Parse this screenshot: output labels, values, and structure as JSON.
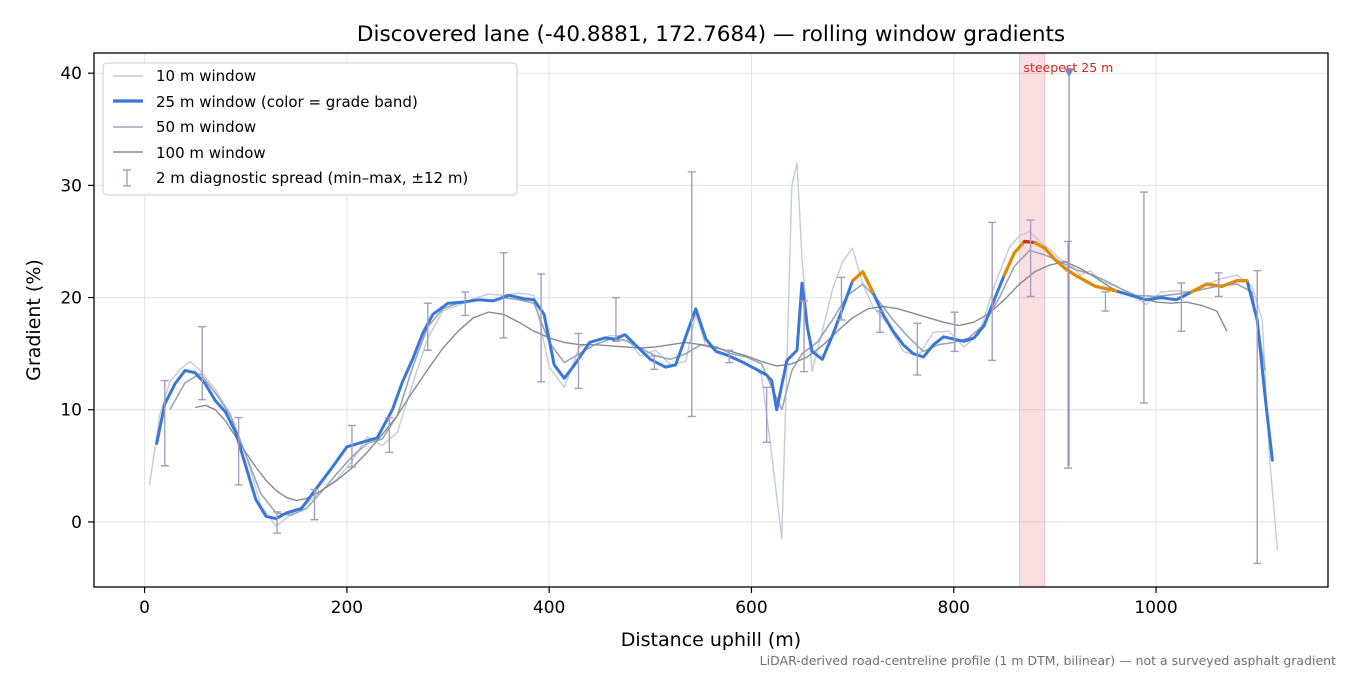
{
  "chart_data": {
    "type": "line",
    "title": "Discovered lane (-40.8881, 172.7684) — rolling window gradients",
    "xlabel": "Distance uphill (m)",
    "ylabel": "Gradient (%)",
    "xlim": [
      -50,
      1170
    ],
    "ylim": [
      -5.8,
      41.8
    ],
    "xticks": [
      0,
      200,
      400,
      600,
      800,
      1000
    ],
    "yticks": [
      0,
      10,
      20,
      30,
      40
    ],
    "grid": true,
    "legend_position": "top-left",
    "footnote": "LiDAR-derived road-centreline profile (1 m DTM, bilinear) — not a surveyed asphalt gradient",
    "highlight": {
      "x_range": [
        865,
        890
      ],
      "label": "steepest 25 m",
      "marker": [
        914,
        40
      ],
      "color": "#d9434f"
    },
    "colors": {
      "w10": "#c3ccd6",
      "w25": "#3a78d6",
      "w25_steep": "#e08c00",
      "w25_peak": "#d0281a",
      "w50": "#9aa6b6",
      "w100": "#858b95",
      "errorbar": "#a59cc2"
    },
    "series": [
      {
        "name": "10 m window",
        "key": "w10",
        "x": [
          5,
          15,
          25,
          35,
          45,
          55,
          70,
          85,
          100,
          115,
          130,
          145,
          160,
          175,
          190,
          205,
          220,
          235,
          250,
          265,
          280,
          295,
          310,
          325,
          340,
          355,
          370,
          385,
          400,
          415,
          430,
          445,
          460,
          475,
          490,
          505,
          520,
          535,
          545,
          555,
          570,
          585,
          600,
          610,
          620,
          630,
          640,
          645,
          650,
          660,
          670,
          680,
          690,
          700,
          710,
          720,
          735,
          750,
          765,
          780,
          795,
          810,
          825,
          840,
          855,
          865,
          875,
          885,
          895,
          905,
          915,
          925,
          935,
          945,
          960,
          975,
          990,
          1005,
          1020,
          1035,
          1050,
          1065,
          1080,
          1095,
          1105,
          1112,
          1120
        ],
        "y": [
          3.3,
          9.5,
          12.5,
          13.6,
          14.3,
          13.5,
          11.8,
          9.6,
          6.0,
          1.5,
          -0.4,
          0.7,
          1.6,
          2.8,
          3.8,
          5.4,
          7.6,
          6.8,
          8.0,
          12.3,
          16.4,
          18.8,
          19.3,
          19.9,
          20.3,
          20.2,
          20.4,
          20.2,
          13.8,
          12.0,
          15.6,
          16.1,
          16.6,
          16.6,
          14.8,
          15.3,
          14.0,
          14.3,
          18.5,
          15.7,
          15.1,
          14.6,
          13.9,
          13.1,
          6.0,
          -1.5,
          30.0,
          32.0,
          23.5,
          13.4,
          17.0,
          20.7,
          23.2,
          24.4,
          21.2,
          19.2,
          17.6,
          15.2,
          14.8,
          16.9,
          17.0,
          15.6,
          16.7,
          21.0,
          24.5,
          25.5,
          25.9,
          25.0,
          24.3,
          23.4,
          23.0,
          22.0,
          22.4,
          21.5,
          21.0,
          20.3,
          19.4,
          20.5,
          20.6,
          20.5,
          21.2,
          21.7,
          22.0,
          21.0,
          18.0,
          6.0,
          -2.5
        ]
      },
      {
        "name": "25 m window (color = grade band)",
        "key": "w25",
        "x": [
          12,
          20,
          30,
          40,
          50,
          60,
          70,
          80,
          90,
          100,
          110,
          120,
          130,
          140,
          155,
          170,
          185,
          200,
          215,
          230,
          245,
          255,
          265,
          275,
          285,
          300,
          315,
          330,
          345,
          360,
          375,
          385,
          395,
          405,
          415,
          425,
          440,
          455,
          465,
          475,
          485,
          500,
          515,
          525,
          535,
          545,
          555,
          565,
          575,
          590,
          605,
          615,
          620,
          625,
          635,
          645,
          650,
          655,
          660,
          670,
          680,
          690,
          700,
          710,
          720,
          730,
          740,
          750,
          760,
          770,
          780,
          790,
          800,
          810,
          820,
          830,
          840,
          850,
          860,
          870,
          880,
          890,
          900,
          910,
          920,
          930,
          940,
          950,
          960,
          975,
          990,
          1005,
          1020,
          1035,
          1050,
          1065,
          1080,
          1090,
          1100,
          1108,
          1115
        ],
        "y": [
          7.0,
          10.5,
          12.3,
          13.5,
          13.3,
          12.3,
          10.8,
          9.8,
          8.0,
          5.0,
          2.0,
          0.5,
          0.3,
          0.8,
          1.2,
          3.0,
          4.8,
          6.7,
          7.1,
          7.5,
          10.0,
          12.5,
          14.5,
          16.8,
          18.5,
          19.5,
          19.6,
          19.8,
          19.7,
          20.2,
          19.9,
          19.8,
          18.5,
          14.0,
          12.8,
          14.0,
          16.0,
          16.4,
          16.3,
          16.7,
          15.8,
          14.5,
          13.8,
          14.0,
          16.5,
          19.0,
          16.3,
          15.2,
          14.9,
          14.3,
          13.6,
          13.1,
          12.6,
          10.0,
          14.4,
          15.3,
          21.3,
          17.5,
          15.2,
          14.5,
          16.6,
          19.0,
          21.5,
          22.3,
          20.5,
          18.5,
          17.0,
          15.8,
          15.0,
          14.7,
          15.8,
          16.5,
          16.3,
          16.1,
          16.4,
          17.5,
          19.8,
          22.0,
          24.0,
          25.0,
          24.9,
          24.4,
          23.4,
          22.6,
          22.0,
          21.5,
          21.0,
          20.8,
          20.6,
          20.2,
          19.8,
          20.0,
          19.8,
          20.5,
          21.2,
          21.0,
          21.5,
          21.5,
          18.0,
          11.0,
          5.5
        ]
      },
      {
        "name": "50 m window",
        "key": "w50",
        "x": [
          25,
          40,
          55,
          70,
          85,
          100,
          115,
          130,
          145,
          160,
          175,
          190,
          205,
          220,
          235,
          250,
          265,
          280,
          295,
          310,
          325,
          340,
          355,
          370,
          385,
          400,
          415,
          430,
          445,
          460,
          475,
          490,
          505,
          520,
          535,
          550,
          565,
          580,
          595,
          610,
          620,
          630,
          640,
          650,
          665,
          680,
          695,
          710,
          725,
          740,
          755,
          770,
          785,
          800,
          815,
          830,
          845,
          860,
          875,
          890,
          905,
          920,
          935,
          950,
          965,
          980,
          1000,
          1020,
          1040,
          1060,
          1080,
          1095,
          1108
        ],
        "y": [
          10.0,
          12.4,
          13.2,
          11.5,
          9.5,
          6.0,
          2.5,
          0.8,
          0.6,
          1.2,
          2.7,
          4.3,
          5.8,
          7.0,
          7.4,
          9.5,
          13.8,
          17.4,
          19.0,
          19.5,
          19.8,
          19.7,
          20.0,
          19.8,
          19.5,
          16.0,
          14.2,
          15.0,
          15.8,
          16.3,
          16.2,
          15.5,
          14.8,
          14.5,
          15.0,
          15.8,
          15.6,
          15.0,
          14.7,
          14.1,
          12.0,
          10.0,
          13.5,
          15.0,
          16.0,
          18.0,
          20.2,
          21.2,
          19.8,
          18.0,
          16.5,
          15.2,
          15.8,
          16.0,
          16.4,
          17.6,
          20.0,
          22.8,
          24.2,
          23.8,
          23.2,
          22.5,
          22.1,
          21.5,
          20.8,
          20.2,
          20.1,
          20.3,
          20.6,
          21.0,
          21.2,
          20.5,
          13.5
        ]
      },
      {
        "name": "100 m window",
        "key": "w100",
        "x": [
          50,
          60,
          70,
          80,
          90,
          100,
          110,
          120,
          130,
          140,
          150,
          160,
          175,
          190,
          205,
          220,
          235,
          250,
          265,
          280,
          295,
          310,
          325,
          340,
          355,
          370,
          385,
          400,
          415,
          430,
          445,
          460,
          475,
          490,
          505,
          520,
          535,
          550,
          565,
          580,
          595,
          610,
          625,
          640,
          655,
          670,
          685,
          700,
          715,
          730,
          745,
          760,
          775,
          790,
          805,
          820,
          835,
          850,
          865,
          880,
          895,
          910,
          925,
          940,
          955,
          970,
          985,
          1000,
          1015,
          1030,
          1045,
          1060,
          1070
        ],
        "y": [
          10.2,
          10.4,
          10.0,
          9.0,
          7.6,
          6.2,
          4.9,
          3.7,
          2.8,
          2.2,
          1.9,
          2.1,
          2.8,
          3.7,
          4.8,
          6.2,
          7.8,
          9.5,
          11.6,
          13.6,
          15.5,
          17.0,
          18.2,
          18.7,
          18.5,
          17.8,
          17.0,
          16.4,
          16.0,
          15.8,
          15.8,
          15.7,
          15.6,
          15.5,
          15.6,
          15.8,
          16.0,
          15.8,
          15.5,
          15.2,
          14.8,
          14.3,
          13.9,
          14.1,
          14.7,
          15.7,
          17.0,
          18.2,
          19.0,
          19.2,
          19.0,
          18.6,
          18.2,
          17.8,
          17.5,
          17.8,
          18.6,
          19.8,
          21.2,
          22.3,
          22.9,
          23.2,
          22.6,
          21.8,
          20.9,
          20.3,
          20.0,
          19.6,
          19.5,
          19.6,
          19.3,
          18.8,
          17.0
        ]
      }
    ],
    "errorbars": [
      {
        "x": 20,
        "min": 5.0,
        "max": 12.6
      },
      {
        "x": 57,
        "min": 10.9,
        "max": 17.4
      },
      {
        "x": 93,
        "min": 3.3,
        "max": 9.3
      },
      {
        "x": 131,
        "min": -1.0,
        "max": 0.9
      },
      {
        "x": 168,
        "min": 0.2,
        "max": 2.9
      },
      {
        "x": 205,
        "min": 4.9,
        "max": 8.6
      },
      {
        "x": 242,
        "min": 6.2,
        "max": 9.3
      },
      {
        "x": 280,
        "min": 15.3,
        "max": 19.5
      },
      {
        "x": 317,
        "min": 18.4,
        "max": 20.5
      },
      {
        "x": 355,
        "min": 16.4,
        "max": 24.0
      },
      {
        "x": 392,
        "min": 12.5,
        "max": 22.1
      },
      {
        "x": 429,
        "min": 11.9,
        "max": 16.8
      },
      {
        "x": 466,
        "min": 16.1,
        "max": 20.0
      },
      {
        "x": 504,
        "min": 13.6,
        "max": 14.8
      },
      {
        "x": 541,
        "min": 9.4,
        "max": 31.2
      },
      {
        "x": 578,
        "min": 14.2,
        "max": 15.3
      },
      {
        "x": 615,
        "min": 7.1,
        "max": 12.0
      },
      {
        "x": 652,
        "min": 13.4,
        "max": 19.7
      },
      {
        "x": 689,
        "min": 18.0,
        "max": 21.8
      },
      {
        "x": 727,
        "min": 16.9,
        "max": 18.8
      },
      {
        "x": 764,
        "min": 13.1,
        "max": 17.7
      },
      {
        "x": 801,
        "min": 15.2,
        "max": 18.7
      },
      {
        "x": 838,
        "min": 14.4,
        "max": 26.7
      },
      {
        "x": 876,
        "min": 20.1,
        "max": 26.9
      },
      {
        "x": 913,
        "min": 4.8,
        "max": 25.0
      },
      {
        "x": 950,
        "min": 18.8,
        "max": 20.5
      },
      {
        "x": 988,
        "min": 10.6,
        "max": 29.4
      },
      {
        "x": 1025,
        "min": 17.0,
        "max": 21.3
      },
      {
        "x": 1062,
        "min": 20.1,
        "max": 22.2
      },
      {
        "x": 1100,
        "min": -3.7,
        "max": 22.4
      }
    ]
  }
}
